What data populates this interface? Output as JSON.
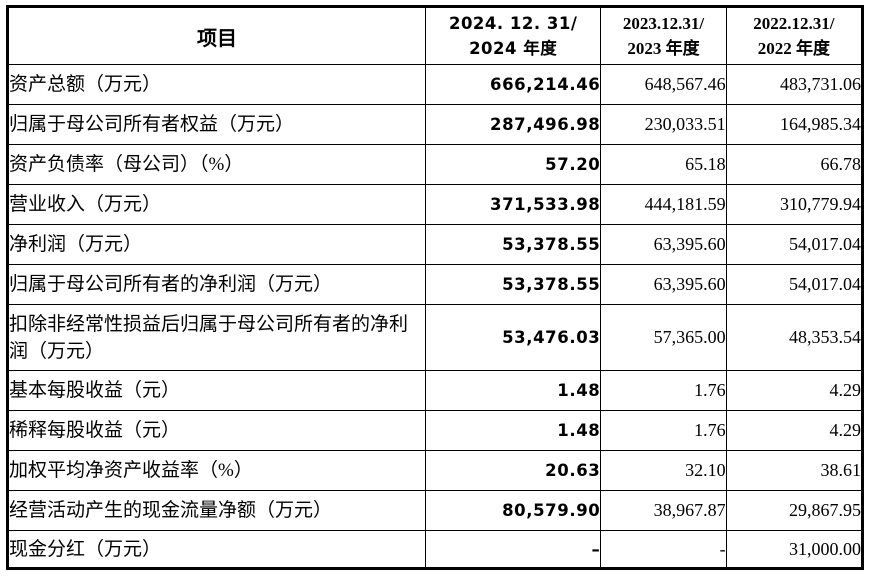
{
  "table": {
    "header": {
      "item_label": "项目",
      "periods": [
        {
          "line1": "2024. 12. 31/",
          "line2": "2024 年度"
        },
        {
          "line1": "2023.12.31/",
          "line2": "2023 年度"
        },
        {
          "line1": "2022.12.31/",
          "line2": "2022 年度"
        }
      ]
    },
    "rows": [
      {
        "label": "资产总额（万元）",
        "values": [
          "666,214.46",
          "648,567.46",
          "483,731.06"
        ]
      },
      {
        "label": "归属于母公司所有者权益（万元）",
        "values": [
          "287,496.98",
          "230,033.51",
          "164,985.34"
        ]
      },
      {
        "label": "资产负债率（母公司）（%）",
        "values": [
          "57.20",
          "65.18",
          "66.78"
        ]
      },
      {
        "label": "营业收入（万元）",
        "values": [
          "371,533.98",
          "444,181.59",
          "310,779.94"
        ]
      },
      {
        "label": "净利润（万元）",
        "values": [
          "53,378.55",
          "63,395.60",
          "54,017.04"
        ]
      },
      {
        "label": "归属于母公司所有者的净利润（万元）",
        "values": [
          "53,378.55",
          "63,395.60",
          "54,017.04"
        ]
      },
      {
        "label": "扣除非经常性损益后归属于母公司所有者的净利润（万元）",
        "values": [
          "53,476.03",
          "57,365.00",
          "48,353.54"
        ]
      },
      {
        "label": "基本每股收益（元）",
        "values": [
          "1.48",
          "1.76",
          "4.29"
        ]
      },
      {
        "label": "稀释每股收益（元）",
        "values": [
          "1.48",
          "1.76",
          "4.29"
        ]
      },
      {
        "label": "加权平均净资产收益率（%）",
        "values": [
          "20.63",
          "32.10",
          "38.61"
        ]
      },
      {
        "label": "经营活动产生的现金流量净额（万元）",
        "values": [
          "80,579.90",
          "38,967.87",
          "29,867.95"
        ]
      },
      {
        "label": "现金分红（万元）",
        "values": [
          "–",
          "-",
          "31,000.00"
        ]
      }
    ]
  }
}
